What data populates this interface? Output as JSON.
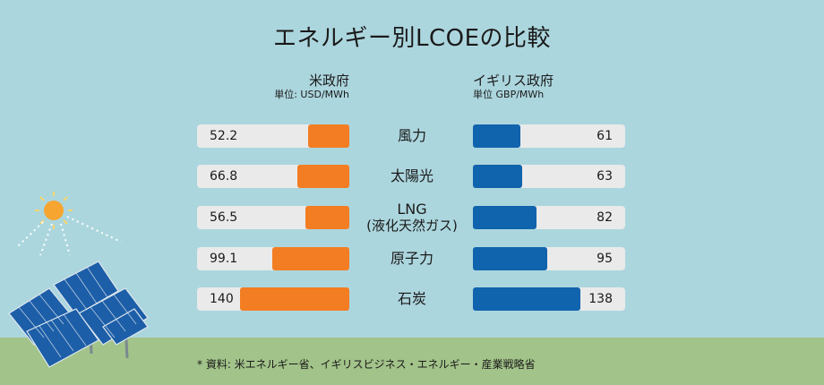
{
  "title": "エネルギー別LCOEの比較",
  "us": {
    "heading": "米政府",
    "unit": "単位: USD/MWh"
  },
  "uk": {
    "heading": "イギリス政府",
    "unit": "単位 GBP/MWh"
  },
  "source": "* 資料: 米エネルギー省、イギリスビジネス・エネルギー・産業戦略省",
  "colors": {
    "us_bar": "#f37d22",
    "uk_bar": "#1063ad",
    "track": "#eaeaea",
    "sky": "#acd6de",
    "ground": "#a2c389"
  },
  "chart_data": {
    "type": "bar",
    "title": "エネルギー別LCOEの比較",
    "categories": [
      {
        "line1": "風力",
        "line2": ""
      },
      {
        "line1": "太陽光",
        "line2": ""
      },
      {
        "line1": "LNG",
        "line2": "(液化天然ガス)"
      },
      {
        "line1": "原子力",
        "line2": ""
      },
      {
        "line1": "石炭",
        "line2": ""
      }
    ],
    "series": [
      {
        "name": "米政府",
        "values": [
          "52.2",
          "66.8",
          "56.5",
          "99.1",
          "140"
        ]
      },
      {
        "name": "イギリス政府",
        "values": [
          "61",
          "63",
          "82",
          "95",
          "138"
        ]
      }
    ],
    "xlim": [
      0,
      195
    ]
  }
}
